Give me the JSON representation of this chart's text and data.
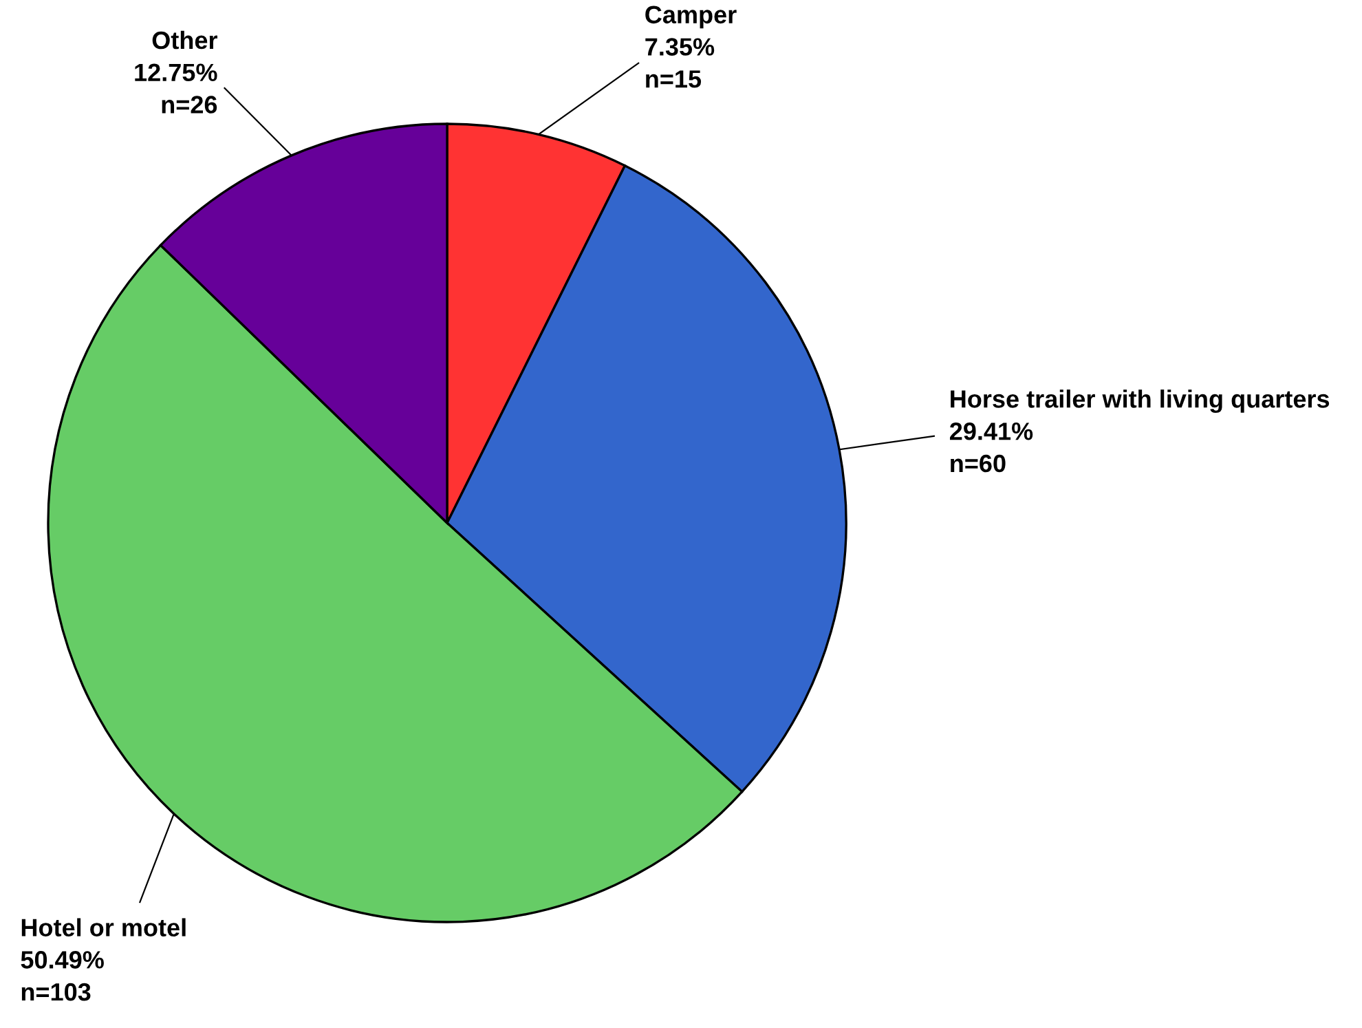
{
  "chart_data": {
    "type": "pie",
    "categories": [
      "Camper",
      "Horse trailer with living quarters",
      "Hotel or motel",
      "Other"
    ],
    "values": [
      7.35,
      29.41,
      50.49,
      12.75
    ],
    "colors": [
      "#ff3333",
      "#3366cc",
      "#66cc66",
      "#660099"
    ],
    "value_labels": [
      "7.35%\nn=15",
      "29.41%\nn=60",
      "50.49%\nn=103",
      "12.75%\nn=26"
    ]
  }
}
